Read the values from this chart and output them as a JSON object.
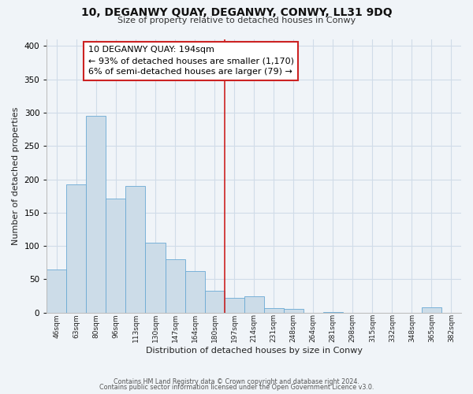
{
  "title": "10, DEGANWY QUAY, DEGANWY, CONWY, LL31 9DQ",
  "subtitle": "Size of property relative to detached houses in Conwy",
  "xlabel": "Distribution of detached houses by size in Conwy",
  "ylabel": "Number of detached properties",
  "bin_labels": [
    "46sqm",
    "63sqm",
    "80sqm",
    "96sqm",
    "113sqm",
    "130sqm",
    "147sqm",
    "164sqm",
    "180sqm",
    "197sqm",
    "214sqm",
    "231sqm",
    "248sqm",
    "264sqm",
    "281sqm",
    "298sqm",
    "315sqm",
    "332sqm",
    "348sqm",
    "365sqm",
    "382sqm"
  ],
  "bar_heights": [
    65,
    192,
    295,
    171,
    190,
    105,
    80,
    62,
    33,
    22,
    25,
    7,
    5,
    0,
    1,
    0,
    0,
    0,
    0,
    8,
    0
  ],
  "bar_color": "#ccdce8",
  "bar_edge_color": "#6aaad4",
  "property_line_x": 8.5,
  "annotation_title": "10 DEGANWY QUAY: 194sqm",
  "annotation_line1": "← 93% of detached houses are smaller (1,170)",
  "annotation_line2": "6% of semi-detached houses are larger (79) →",
  "ylim": [
    0,
    410
  ],
  "footer_line1": "Contains HM Land Registry data © Crown copyright and database right 2024.",
  "footer_line2": "Contains public sector information licensed under the Open Government Licence v3.0.",
  "background_color": "#f0f4f8",
  "grid_color": "#d0dce8",
  "annotation_border_color": "#cc2222",
  "vline_color": "#cc2222"
}
